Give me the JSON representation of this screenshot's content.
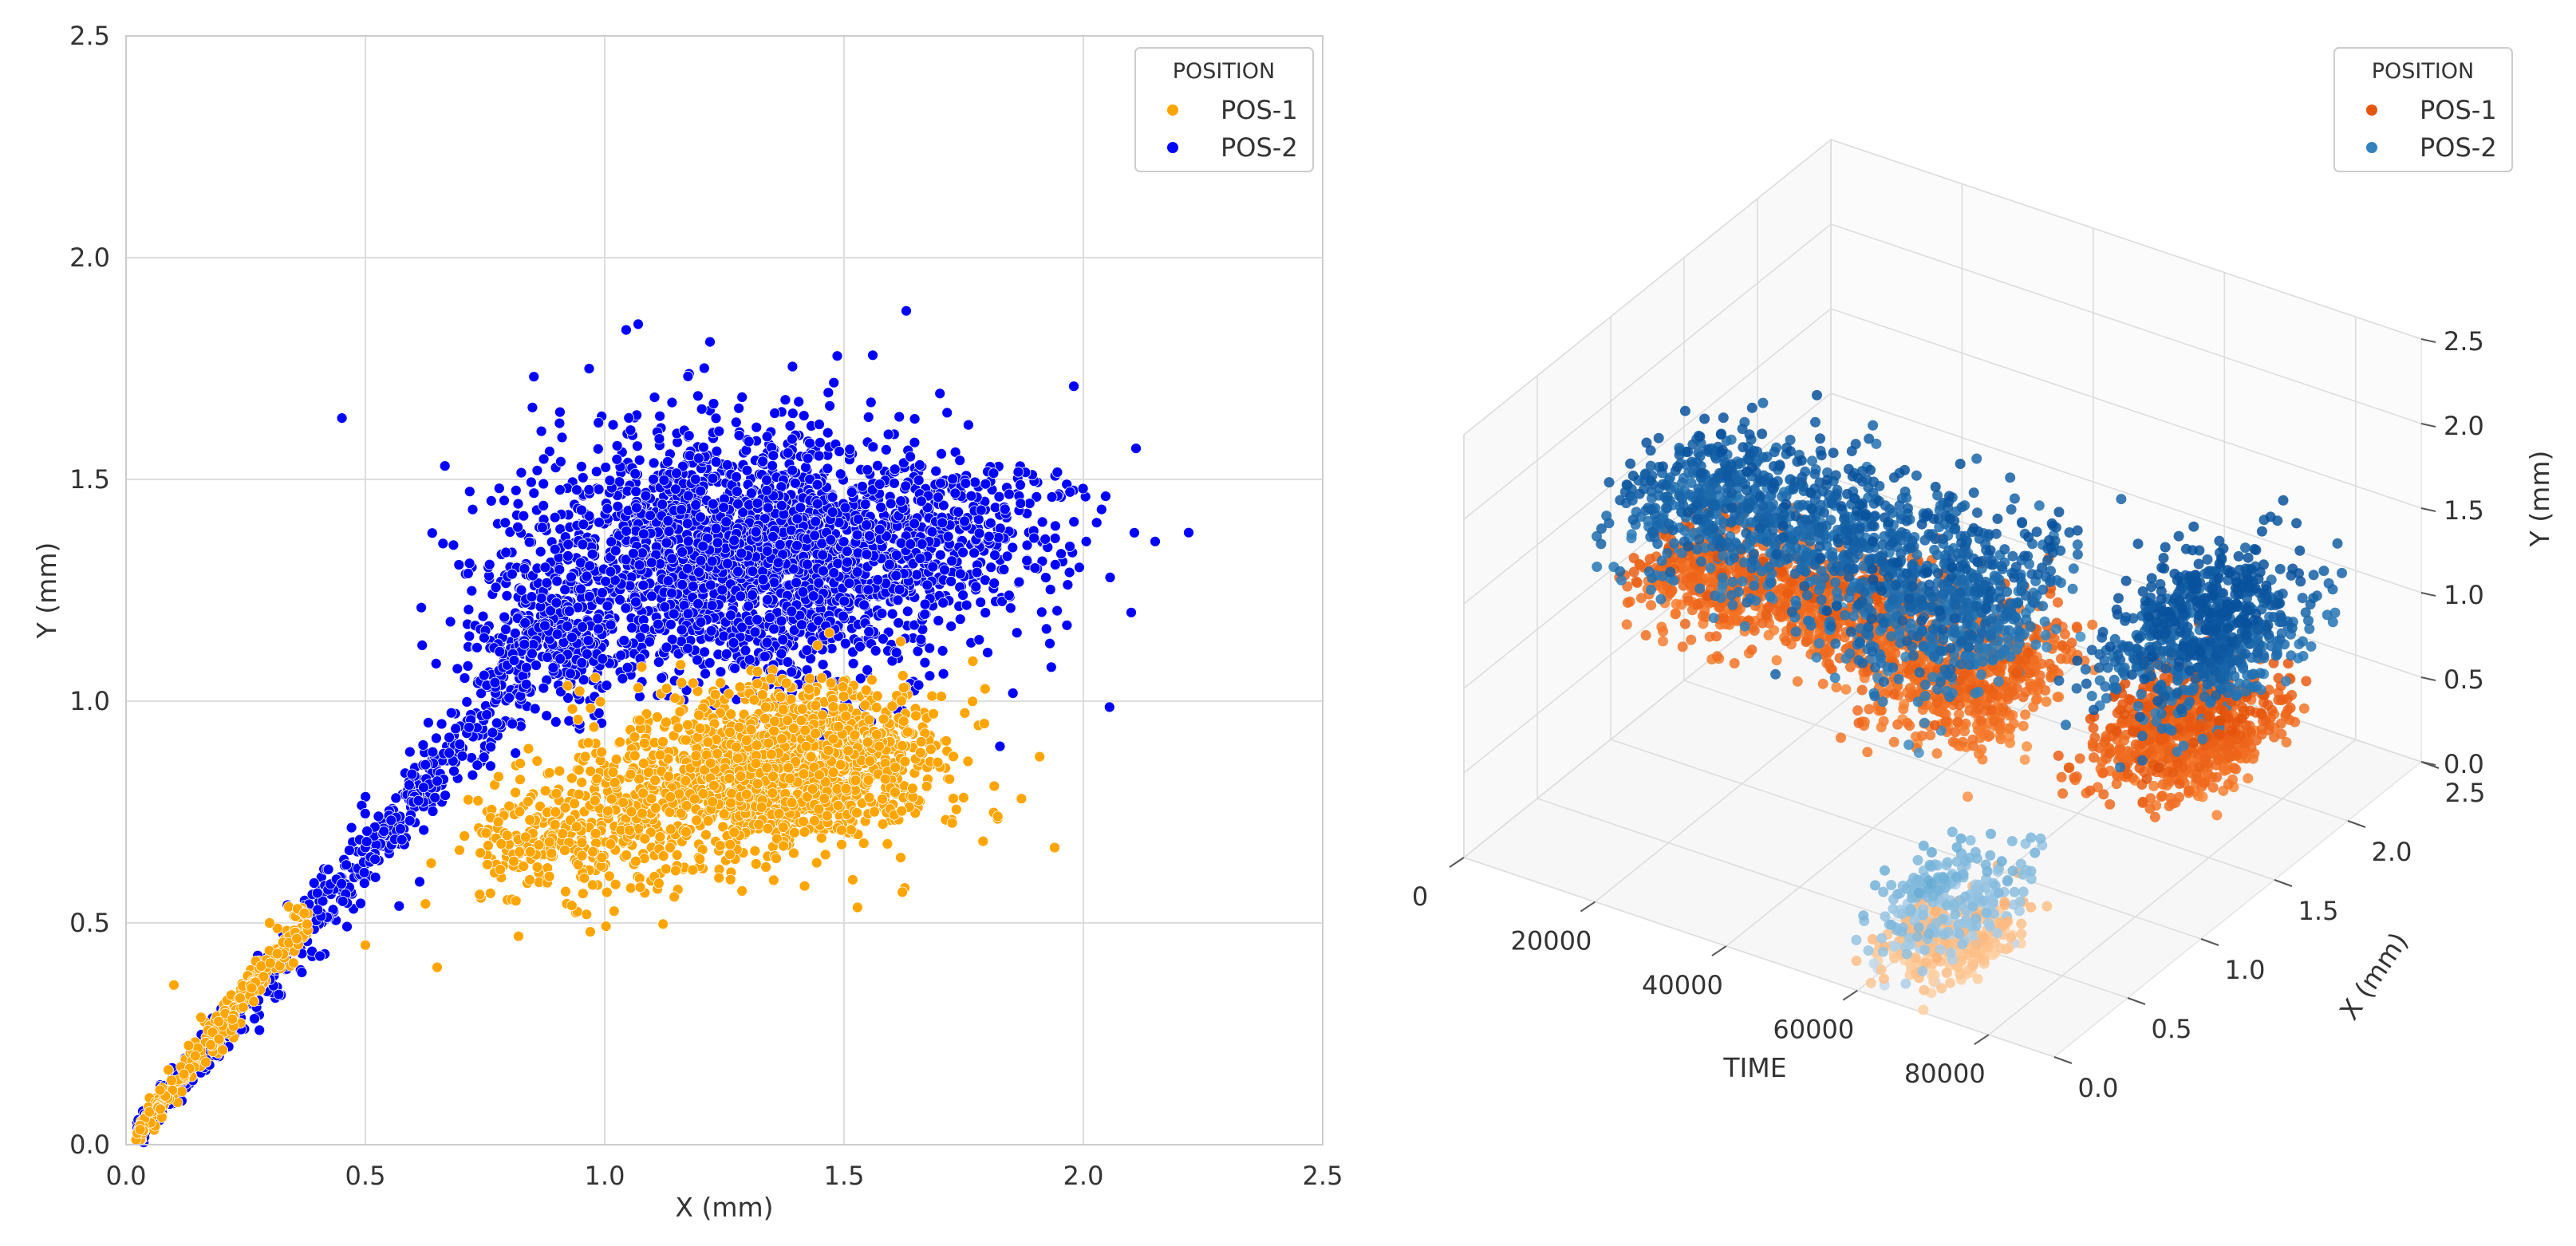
{
  "chart_data": [
    {
      "type": "scatter",
      "title": "",
      "xlabel": "X (mm)",
      "ylabel": "Y (mm)",
      "xlim": [
        0.0,
        2.5
      ],
      "ylim": [
        0.0,
        2.5
      ],
      "xticks": [
        "0.0",
        "0.5",
        "1.0",
        "1.5",
        "2.0",
        "2.5"
      ],
      "yticks": [
        "0.0",
        "0.5",
        "1.0",
        "1.5",
        "2.0",
        "2.5"
      ],
      "grid": true,
      "legend": {
        "title": "POSITION",
        "placement": "top-right",
        "entries": [
          {
            "label": "POS-1",
            "color": "#FFA500"
          },
          {
            "label": "POS-2",
            "color": "#0000FF"
          }
        ]
      },
      "series": [
        {
          "name": "POS-1",
          "color": "#FFA500",
          "clusters": [
            {
              "cx": 1.38,
              "cy": 0.86,
              "sx": 0.16,
              "sy": 0.09,
              "n": 1400
            },
            {
              "cx": 1.05,
              "cy": 0.72,
              "sx": 0.12,
              "sy": 0.08,
              "n": 300
            },
            {
              "cx": 0.85,
              "cy": 0.68,
              "sx": 0.07,
              "sy": 0.07,
              "n": 120
            }
          ],
          "diagonal": {
            "x0": 0.02,
            "x1": 0.38,
            "slope": 1.35,
            "spread": 0.04,
            "n": 260
          },
          "outliers": [
            [
              1.94,
              0.67
            ],
            [
              0.65,
              0.4
            ],
            [
              0.97,
              0.48
            ],
            [
              0.82,
              0.47
            ],
            [
              0.1,
              0.36
            ],
            [
              0.5,
              0.45
            ],
            [
              0.3,
              0.5
            ]
          ]
        },
        {
          "name": "POS-2",
          "color": "#0000FF",
          "clusters": [
            {
              "cx": 1.3,
              "cy": 1.33,
              "sx": 0.22,
              "sy": 0.14,
              "n": 2400
            },
            {
              "cx": 1.75,
              "cy": 1.38,
              "sx": 0.12,
              "sy": 0.09,
              "n": 250
            },
            {
              "cx": 0.9,
              "cy": 1.15,
              "sx": 0.08,
              "sy": 0.08,
              "n": 250
            }
          ],
          "diagonal": {
            "x0": 0.02,
            "x1": 0.85,
            "slope": 1.3,
            "spread": 0.05,
            "n": 650
          },
          "outliers": [
            [
              1.07,
              1.85
            ],
            [
              1.63,
              1.88
            ],
            [
              1.98,
              1.71
            ],
            [
              2.22,
              1.38
            ],
            [
              2.11,
              1.57
            ],
            [
              2.15,
              1.36
            ],
            [
              1.93,
              1.13
            ],
            [
              2.1,
              1.2
            ],
            [
              1.22,
              1.81
            ],
            [
              1.56,
              1.78
            ]
          ]
        }
      ]
    },
    {
      "type": "scatter3d",
      "title": "",
      "xlabel": "TIME",
      "ylabel": "X (mm)",
      "zlabel": "Y (mm)",
      "time_ticks": [
        "0",
        "20000",
        "40000",
        "60000",
        "80000"
      ],
      "xmm_ticks": [
        "0.0",
        "0.5",
        "1.0",
        "1.5",
        "2.0",
        "2.5"
      ],
      "ymm_ticks": [
        "0.0",
        "0.5",
        "1.0",
        "1.5",
        "2.0",
        "2.5"
      ],
      "time_range": [
        0,
        90000
      ],
      "xmm_range": [
        0.0,
        2.5
      ],
      "ymm_range": [
        0.0,
        2.5
      ],
      "grid": true,
      "legend": {
        "title": "POSITION",
        "placement": "top-right",
        "entries": [
          {
            "label": "POS-1",
            "color": "#E6550D"
          },
          {
            "label": "POS-2",
            "color": "#3182BD"
          }
        ]
      },
      "series": [
        {
          "name": "POS-1",
          "colormap": [
            "#FFF5EB",
            "#FDD0A2",
            "#FD8D3C",
            "#E6550D",
            "#A63603"
          ],
          "segments": [
            {
              "t0": 0,
              "t1": 40000,
              "x": 1.38,
              "y": 0.85,
              "sx": 0.18,
              "sy": 0.1,
              "n": 900
            },
            {
              "t0": 40000,
              "t1": 58000,
              "x": 1.3,
              "y": 0.8,
              "sx": 0.22,
              "sy": 0.12,
              "n": 500
            },
            {
              "t0": 58000,
              "t1": 72000,
              "x": 0.4,
              "y": 0.1,
              "sx": 0.15,
              "sy": 0.06,
              "n": 250
            },
            {
              "t0": 72000,
              "t1": 90000,
              "x": 1.3,
              "y": 0.9,
              "sx": 0.22,
              "sy": 0.12,
              "n": 700
            }
          ]
        },
        {
          "name": "POS-2",
          "colormap": [
            "#F7FBFF",
            "#C6DBEF",
            "#6BAED6",
            "#3182BD",
            "#08519C"
          ],
          "segments": [
            {
              "t0": 0,
              "t1": 40000,
              "x": 1.3,
              "y": 1.33,
              "sx": 0.22,
              "sy": 0.14,
              "n": 900
            },
            {
              "t0": 40000,
              "t1": 58000,
              "x": 1.2,
              "y": 1.3,
              "sx": 0.25,
              "sy": 0.15,
              "n": 500
            },
            {
              "t0": 58000,
              "t1": 72000,
              "x": 0.4,
              "y": 0.3,
              "sx": 0.2,
              "sy": 0.12,
              "n": 250
            },
            {
              "t0": 72000,
              "t1": 90000,
              "x": 1.4,
              "y": 1.4,
              "sx": 0.25,
              "sy": 0.15,
              "n": 700
            }
          ]
        }
      ]
    }
  ]
}
